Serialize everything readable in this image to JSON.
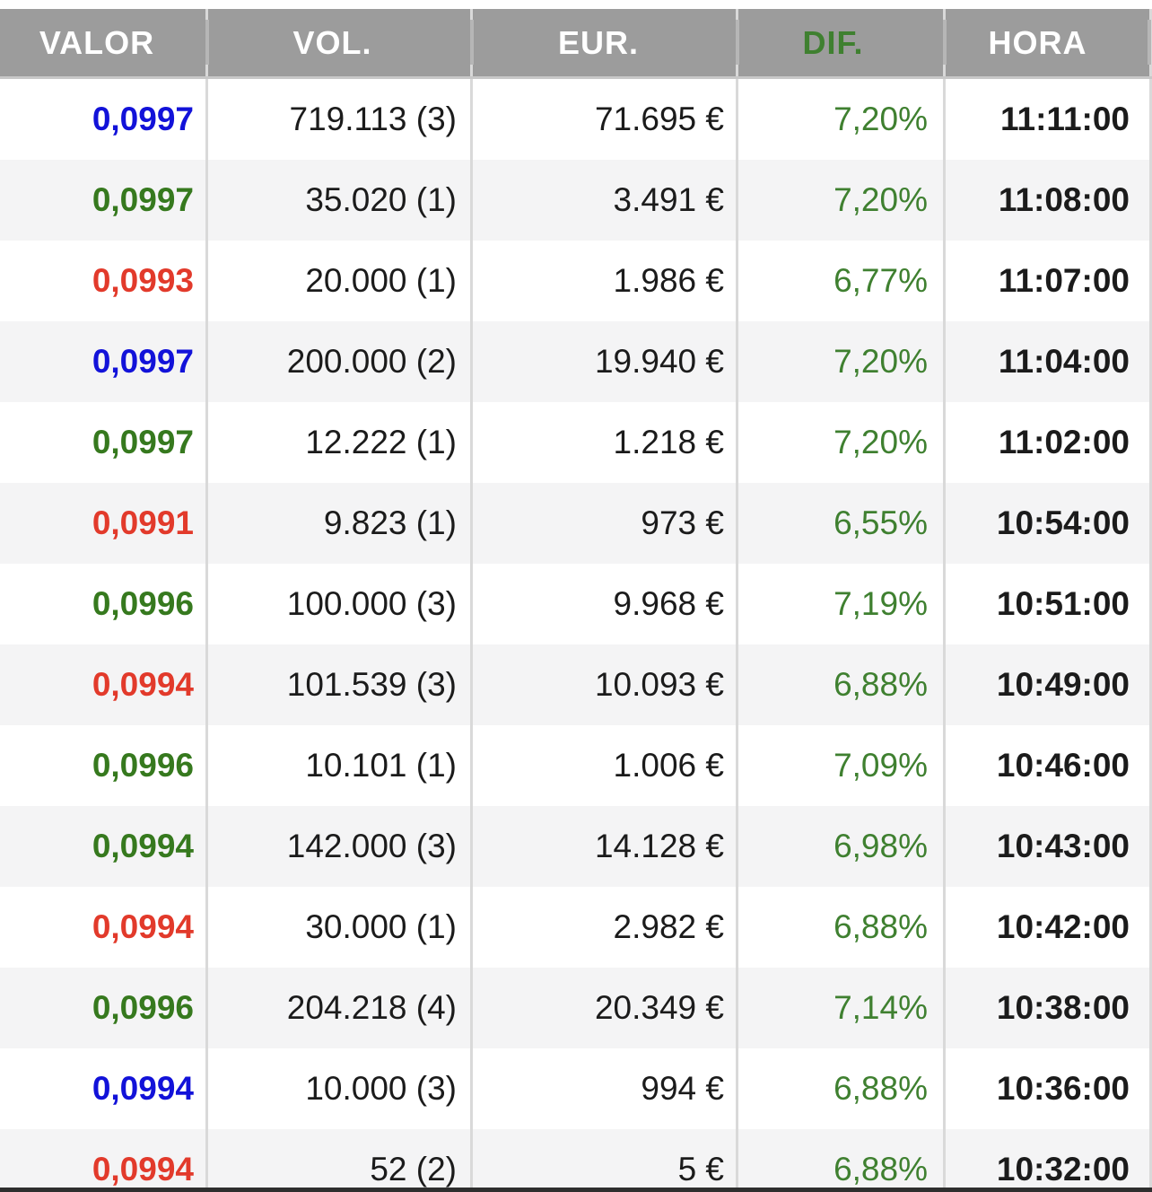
{
  "table": {
    "columns": [
      {
        "key": "valor",
        "label": "VALOR"
      },
      {
        "key": "vol",
        "label": "VOL."
      },
      {
        "key": "eur",
        "label": "EUR."
      },
      {
        "key": "dif",
        "label": "DIF."
      },
      {
        "key": "hora",
        "label": "HORA"
      }
    ],
    "rows": [
      {
        "valor": "0,0997",
        "valor_color": "blue",
        "vol": "719.113 (3)",
        "eur": "71.695 €",
        "dif": "7,20%",
        "hora": "11:11:00"
      },
      {
        "valor": "0,0997",
        "valor_color": "green",
        "vol": "35.020 (1)",
        "eur": "3.491 €",
        "dif": "7,20%",
        "hora": "11:08:00"
      },
      {
        "valor": "0,0993",
        "valor_color": "red",
        "vol": "20.000 (1)",
        "eur": "1.986 €",
        "dif": "6,77%",
        "hora": "11:07:00"
      },
      {
        "valor": "0,0997",
        "valor_color": "blue",
        "vol": "200.000 (2)",
        "eur": "19.940 €",
        "dif": "7,20%",
        "hora": "11:04:00"
      },
      {
        "valor": "0,0997",
        "valor_color": "green",
        "vol": "12.222 (1)",
        "eur": "1.218 €",
        "dif": "7,20%",
        "hora": "11:02:00"
      },
      {
        "valor": "0,0991",
        "valor_color": "red",
        "vol": "9.823 (1)",
        "eur": "973 €",
        "dif": "6,55%",
        "hora": "10:54:00"
      },
      {
        "valor": "0,0996",
        "valor_color": "green",
        "vol": "100.000 (3)",
        "eur": "9.968 €",
        "dif": "7,19%",
        "hora": "10:51:00"
      },
      {
        "valor": "0,0994",
        "valor_color": "red",
        "vol": "101.539 (3)",
        "eur": "10.093 €",
        "dif": "6,88%",
        "hora": "10:49:00"
      },
      {
        "valor": "0,0996",
        "valor_color": "green",
        "vol": "10.101 (1)",
        "eur": "1.006 €",
        "dif": "7,09%",
        "hora": "10:46:00"
      },
      {
        "valor": "0,0994",
        "valor_color": "green",
        "vol": "142.000 (3)",
        "eur": "14.128 €",
        "dif": "6,98%",
        "hora": "10:43:00"
      },
      {
        "valor": "0,0994",
        "valor_color": "red",
        "vol": "30.000 (1)",
        "eur": "2.982 €",
        "dif": "6,88%",
        "hora": "10:42:00"
      },
      {
        "valor": "0,0996",
        "valor_color": "green",
        "vol": "204.218 (4)",
        "eur": "20.349 €",
        "dif": "7,14%",
        "hora": "10:38:00"
      },
      {
        "valor": "0,0994",
        "valor_color": "blue",
        "vol": "10.000 (3)",
        "eur": "994 €",
        "dif": "6,88%",
        "hora": "10:36:00"
      },
      {
        "valor": "0,0994",
        "valor_color": "red",
        "vol": "52 (2)",
        "eur": "5 €",
        "dif": "6,88%",
        "hora": "10:32:00"
      }
    ]
  },
  "colors": {
    "header_bg": "#9c9c9c",
    "header_divider": "#b6b6b6",
    "header_border": "#c8c8c8",
    "stripe_bg": "#f4f4f5",
    "body_divider": "#d9d9d9",
    "text_color": "#1b1b1b",
    "valor_blue": "#1212d9",
    "valor_green": "#36791e",
    "valor_red": "#e23a2b",
    "dif_green": "#3f8030"
  }
}
